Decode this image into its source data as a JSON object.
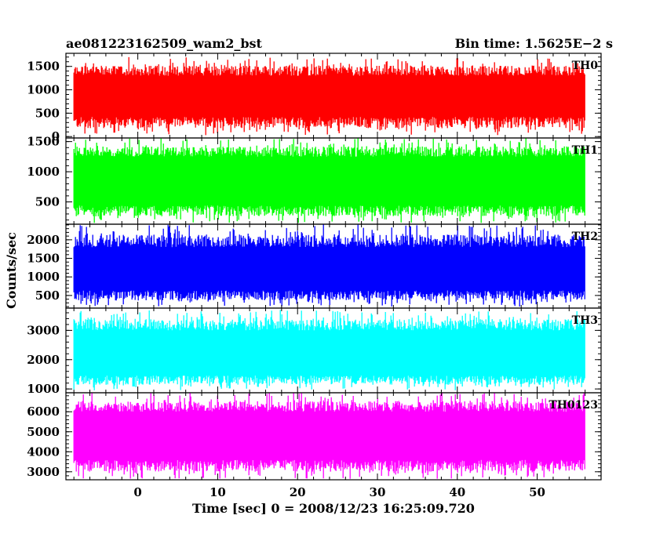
{
  "header": {
    "left_title": "ae081223162509_wam2_bst",
    "right_title": "Bin time: 1.5625E−2 s"
  },
  "chart_data": {
    "type": "line",
    "title": "ae081223162509_wam2_bst",
    "subtitle": "Bin time: 1.5625E−2 s",
    "xlabel": "Time [sec] 0 = 2008/12/23 16:25:09.720",
    "ylabel": "Counts/sec",
    "xlim": [
      -9,
      58
    ],
    "x_data_range": [
      -8,
      56
    ],
    "xticks": [
      0,
      10,
      20,
      30,
      40,
      50
    ],
    "xtick_labels": [
      "0",
      "10",
      "20",
      "30",
      "40",
      "50"
    ],
    "grid": false,
    "legend": "none",
    "series": [
      {
        "name": "TH0",
        "color": "#ff0000",
        "ylim": [
          -30,
          1780
        ],
        "yticks": [
          0,
          500,
          1000,
          1500
        ],
        "ytick_labels": [
          "0",
          "500",
          "1000",
          "1500"
        ],
        "typical_low": 300,
        "typical_high": 1300,
        "min": 30,
        "max": 1700
      },
      {
        "name": "TH1",
        "color": "#00ff00",
        "ylim": [
          130,
          1560
        ],
        "yticks": [
          500,
          1000,
          1500
        ],
        "ytick_labels": [
          "500",
          "1000",
          "1500"
        ],
        "typical_low": 350,
        "typical_high": 1250,
        "min": 150,
        "max": 1560
      },
      {
        "name": "TH2",
        "color": "#0000ff",
        "ylim": [
          160,
          2420
        ],
        "yticks": [
          500,
          1000,
          1500,
          2000
        ],
        "ytick_labels": [
          "500",
          "1000",
          "1500",
          "2000"
        ],
        "typical_low": 500,
        "typical_high": 1800,
        "min": 200,
        "max": 2420
      },
      {
        "name": "TH3",
        "color": "#00ffff",
        "ylim": [
          870,
          3760
        ],
        "yticks": [
          1000,
          2000,
          3000
        ],
        "ytick_labels": [
          "1000",
          "2000",
          "3000"
        ],
        "typical_low": 1300,
        "typical_high": 3000,
        "min": 950,
        "max": 3700
      },
      {
        "name": "TH0123",
        "color": "#ff00ff",
        "ylim": [
          2600,
          6950
        ],
        "yticks": [
          3000,
          4000,
          5000,
          6000
        ],
        "ytick_labels": [
          "3000",
          "4000",
          "5000",
          "6000"
        ],
        "typical_low": 3300,
        "typical_high": 6000,
        "min": 2650,
        "max": 6950
      }
    ]
  }
}
